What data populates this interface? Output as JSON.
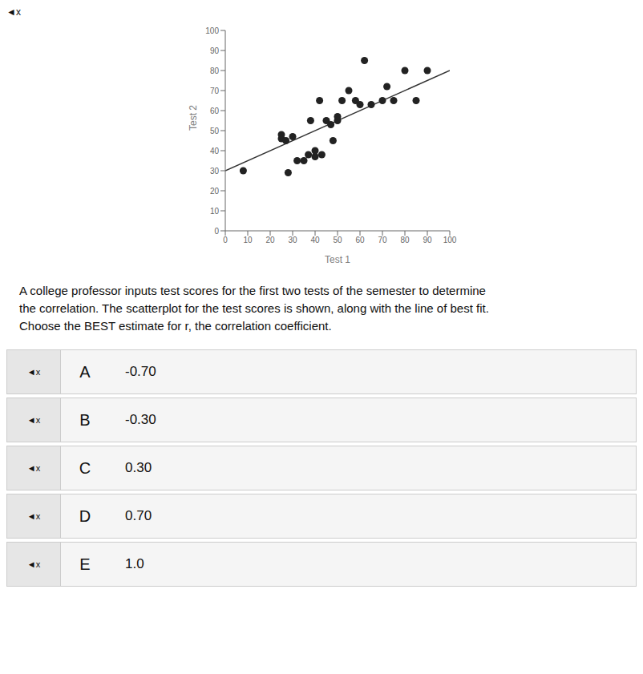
{
  "chart_data": {
    "type": "scatter",
    "xlabel": "Test 1",
    "ylabel": "Test 2",
    "xlim": [
      0,
      100
    ],
    "ylim": [
      0,
      100
    ],
    "xticks": [
      0,
      10,
      20,
      30,
      40,
      50,
      60,
      70,
      80,
      90,
      100
    ],
    "yticks": [
      0,
      10,
      20,
      30,
      40,
      50,
      60,
      70,
      80,
      90,
      100
    ],
    "series": [
      {
        "type": "scatter",
        "color": "#222222",
        "x": [
          8,
          25,
          25,
          27,
          28,
          30,
          32,
          35,
          37,
          38,
          40,
          40,
          42,
          43,
          45,
          47,
          48,
          50,
          50,
          52,
          55,
          58,
          60,
          62,
          65,
          70,
          72,
          75,
          80,
          85,
          90
        ],
        "values": [
          30,
          46,
          48,
          45,
          29,
          47,
          35,
          35,
          38,
          55,
          37,
          40,
          65,
          38,
          55,
          53,
          45,
          55,
          57,
          65,
          70,
          65,
          63,
          85,
          63,
          65,
          72,
          65,
          80,
          65,
          80
        ]
      },
      {
        "type": "line",
        "color": "#333333",
        "x": [
          0,
          100
        ],
        "values": [
          30,
          80
        ]
      }
    ],
    "annotations": {
      "icon": "◄x",
      "description": [
        "A college professor inputs test scores for the first two tests of the semester to determine",
        "the correlation. The scatterplot for the test scores is shown, along with the line of best fit.",
        "Choose the BEST estimate for r, the correlation coefficient."
      ],
      "options": [
        {
          "letter": "A",
          "value": "-0.70"
        },
        {
          "letter": "B",
          "value": "-0.30"
        },
        {
          "letter": "C",
          "value": "0.30"
        },
        {
          "letter": "D",
          "value": "0.70"
        },
        {
          "letter": "E",
          "value": "1.0"
        }
      ]
    }
  }
}
